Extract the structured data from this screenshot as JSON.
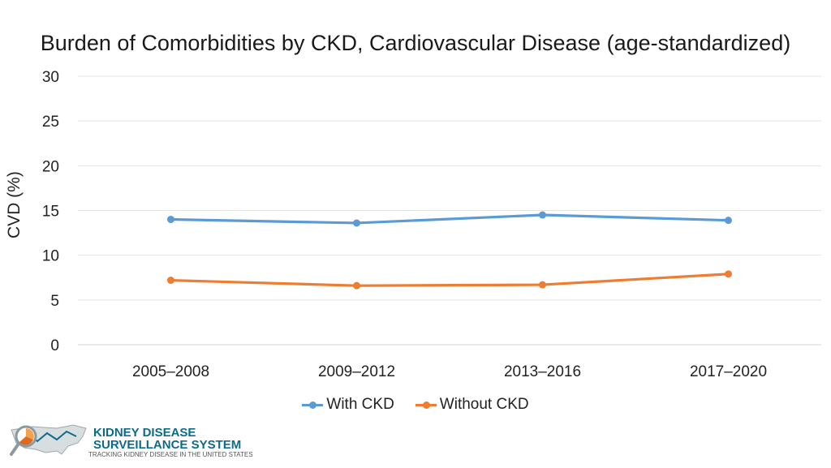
{
  "chart_data": {
    "type": "line",
    "title": "Burden of Comorbidities by CKD, Cardiovascular Disease (age-standardized)",
    "xlabel": "",
    "ylabel": "CVD (%)",
    "categories": [
      "2005–2008",
      "2009–2012",
      "2013–2016",
      "2017–2020"
    ],
    "ylim": [
      0,
      30
    ],
    "yticks": [
      0,
      5,
      10,
      15,
      20,
      25,
      30
    ],
    "grid": true,
    "legend_position": "bottom",
    "series": [
      {
        "name": "With CKD",
        "color": "#5b9bd5",
        "values": [
          14.0,
          13.6,
          14.5,
          13.9
        ]
      },
      {
        "name": "Without CKD",
        "color": "#ed7d31",
        "values": [
          7.2,
          6.6,
          6.7,
          7.9
        ]
      }
    ]
  },
  "logo": {
    "line1": "KIDNEY DISEASE",
    "line2": "SURVEILLANCE SYSTEM",
    "line3": "TRACKING KIDNEY DISEASE IN THE UNITED STATES",
    "color": "#0e6a8a",
    "accent": "#f4a34b"
  }
}
